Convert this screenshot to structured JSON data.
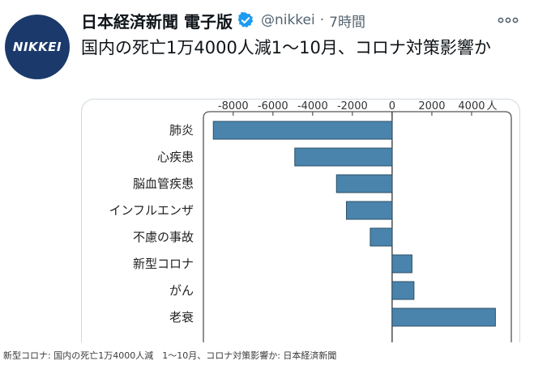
{
  "tweet": {
    "avatar_text": "NIKKEI",
    "display_name": "日本経済新聞 電子版",
    "handle": "@nikkei",
    "separator": "·",
    "time": "7時間",
    "headline": "国内の死亡1万4000人減1～10月、コロナ対策影響か"
  },
  "icons": {
    "verified": "verified-badge-icon",
    "more": "more-options-icon"
  },
  "colors": {
    "bar": "#4a84ad",
    "bar_stroke": "#2c4f66",
    "verified": "#1d9bf0",
    "avatar_bg": "#1b3a6b"
  },
  "chart_data": {
    "type": "bar",
    "orientation": "horizontal",
    "categories": [
      "肺炎",
      "心疾患",
      "脳血管疾患",
      "インフルエンザ",
      "不慮の事故",
      "新型コロナ",
      "がん",
      "老衰"
    ],
    "values": [
      -9000,
      -4900,
      -2800,
      -2300,
      -1100,
      1000,
      1100,
      5200
    ],
    "xlim": [
      -9500,
      6000
    ],
    "xticks": [
      -8000,
      -6000,
      -4000,
      -2000,
      0,
      2000,
      4000
    ],
    "tick_labels": [
      "-8000",
      "-6000",
      "-4000",
      "-2000",
      "0",
      "2000",
      "4000"
    ],
    "unit_label": "人",
    "title": "",
    "xlabel": "",
    "ylabel": ""
  },
  "caption": "新型コロナ: 国内の死亡1万4000人減　1～10月、コロナ対策影響か: 日本経済新聞"
}
